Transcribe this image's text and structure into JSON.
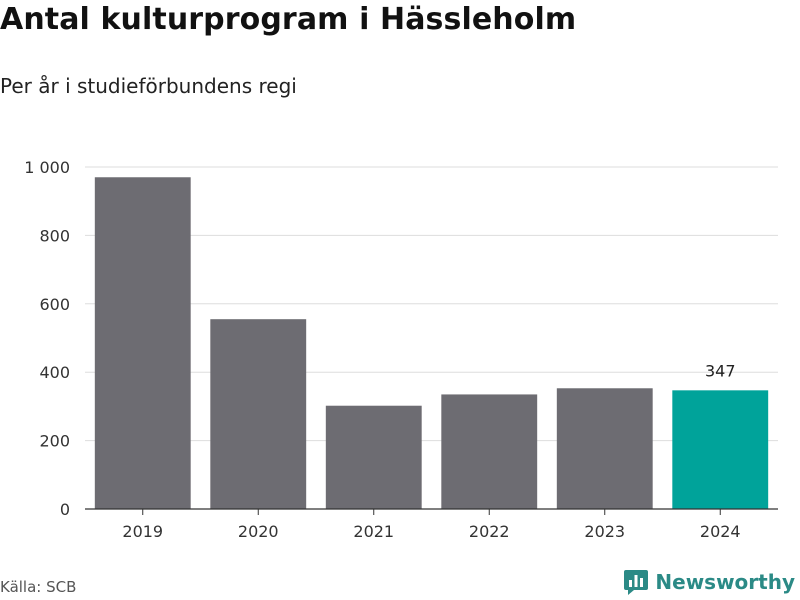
{
  "header": {
    "title": "Antal kulturprogram i Hässleholm",
    "subtitle": "Per år i studieförbundens regi"
  },
  "footer": {
    "source": "Källa: SCB",
    "brand": "Newsworthy",
    "brand_icon": "bar-chart-logo-icon",
    "brand_color": "#2b8a86"
  },
  "colors": {
    "bar_default": "#6d6c72",
    "bar_highlight": "#00a39a",
    "grid": "#dddddd",
    "axis": "#333333"
  },
  "chart_data": {
    "type": "bar",
    "categories": [
      "2019",
      "2020",
      "2021",
      "2022",
      "2023",
      "2024"
    ],
    "values": [
      970,
      555,
      302,
      335,
      353,
      347
    ],
    "highlight_index": 5,
    "data_labels": {
      "2024": "347"
    },
    "ylim": [
      0,
      1000
    ],
    "yticks": [
      0,
      200,
      400,
      600,
      800,
      1000
    ],
    "ytick_labels": [
      "0",
      "200",
      "400",
      "600",
      "800",
      "1 000"
    ],
    "grid": true,
    "xlabel": "",
    "ylabel": ""
  }
}
